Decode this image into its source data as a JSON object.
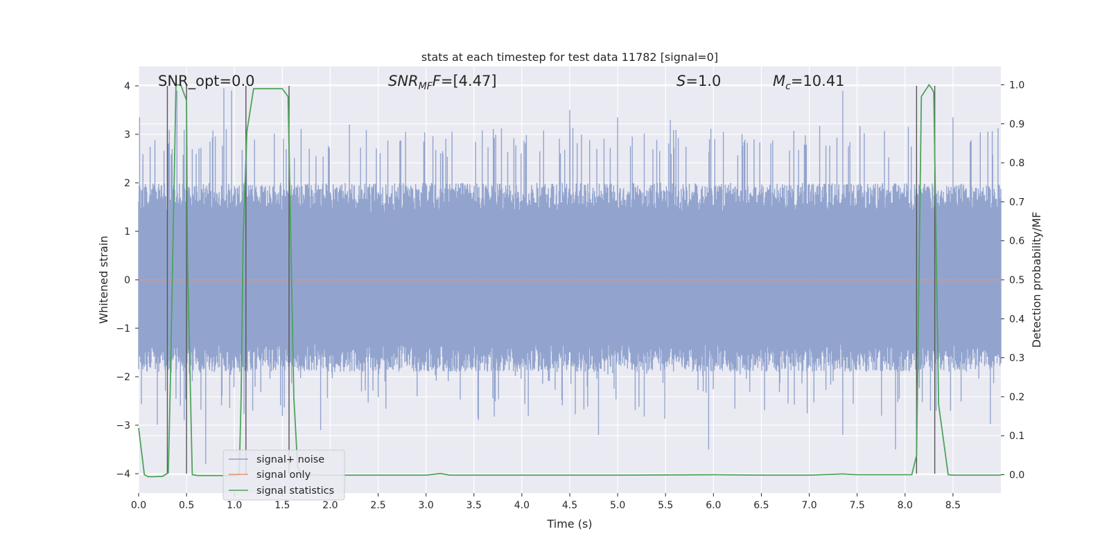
{
  "chart_data": {
    "type": "line",
    "title": "stats at each timestep for test data 11782 [signal=0]",
    "xlabel": "Time (s)",
    "ylabel": "Whitened strain",
    "y2label": "Detection probability/MF",
    "xlim": [
      0,
      9.0
    ],
    "ylim": [
      -4.4,
      4.4
    ],
    "y2lim": [
      -0.047,
      1.047
    ],
    "xticks": [
      "0.0",
      "0.5",
      "1.0",
      "1.5",
      "2.0",
      "2.5",
      "3.0",
      "3.5",
      "4.0",
      "4.5",
      "5.0",
      "5.5",
      "6.0",
      "6.5",
      "7.0",
      "7.5",
      "8.0",
      "8.5"
    ],
    "yticks": [
      "−4",
      "−3",
      "−2",
      "−1",
      "0",
      "1",
      "2",
      "3",
      "4"
    ],
    "y2ticks": [
      "0.0",
      "0.1",
      "0.2",
      "0.3",
      "0.4",
      "0.5",
      "0.6",
      "0.7",
      "0.8",
      "0.9",
      "1.0"
    ],
    "grid": true,
    "legend_position": "lower-left",
    "annotations": {
      "snr_opt": "SNR_opt=0.0",
      "snr_mf_main": "SNR",
      "snr_mf_sub": "MF",
      "snr_mf_value": "=[4.47]",
      "s_main": "S",
      "s_value": "=1.0",
      "mc_main": "M",
      "mc_sub": "c",
      "mc_value": "=10.41"
    },
    "series": [
      {
        "name": "signal+ noise",
        "color": "#8da0cb",
        "kind": "noise",
        "envelope_upper": 2.0,
        "envelope_lower": -1.9,
        "samples": 1800,
        "peak_spikes": [
          [
            0.01,
            3.35
          ],
          [
            0.4,
            3.9
          ],
          [
            0.89,
            3.95
          ],
          [
            0.97,
            3.9
          ],
          [
            2.2,
            3.2
          ],
          [
            4.5,
            3.5
          ],
          [
            5.0,
            3.35
          ],
          [
            5.55,
            3.3
          ],
          [
            7.35,
            3.9
          ],
          [
            8.5,
            3.35
          ],
          [
            0.7,
            -3.8
          ],
          [
            1.9,
            -3.1
          ],
          [
            4.8,
            -3.2
          ],
          [
            5.95,
            -3.5
          ],
          [
            7.35,
            -3.2
          ],
          [
            7.9,
            -3.5
          ]
        ]
      },
      {
        "name": "signal only",
        "color": "#e4936a",
        "kind": "line",
        "x": [
          0.0,
          9.0
        ],
        "y": [
          0.0,
          0.0
        ]
      },
      {
        "name": "signal statistics",
        "color": "#4da35a",
        "kind": "line",
        "axis": "right",
        "x": [
          0.0,
          0.06,
          0.1,
          0.15,
          0.25,
          0.31,
          0.33,
          0.39,
          0.44,
          0.5,
          0.51,
          0.56,
          0.62,
          1.0,
          1.05,
          1.07,
          1.09,
          1.13,
          1.2,
          1.35,
          1.5,
          1.56,
          1.62,
          1.66,
          1.7,
          1.75,
          2.0,
          3.0,
          3.15,
          3.25,
          3.5,
          5.0,
          6.0,
          6.5,
          7.0,
          7.35,
          7.5,
          8.0,
          8.07,
          8.12,
          8.17,
          8.25,
          8.28,
          8.3,
          8.35,
          8.45,
          8.5,
          9.0
        ],
        "y": [
          0.12,
          0.0,
          -0.005,
          -0.005,
          -0.004,
          0.005,
          0.22,
          1.0,
          1.0,
          0.96,
          0.55,
          0.0,
          -0.002,
          -0.002,
          0.0,
          0.2,
          0.6,
          0.88,
          0.99,
          0.99,
          0.99,
          0.97,
          0.2,
          0.02,
          0.0,
          0.0,
          -0.001,
          -0.001,
          0.003,
          -0.001,
          -0.001,
          -0.001,
          0.0,
          -0.001,
          -0.001,
          0.002,
          0.0,
          0.0,
          0.0,
          0.05,
          0.97,
          1.0,
          0.99,
          0.98,
          0.18,
          0.0,
          -0.001,
          -0.001
        ]
      }
    ],
    "vlines_x": [
      0.3,
      0.5,
      1.12,
      1.57,
      8.12,
      8.31
    ]
  }
}
